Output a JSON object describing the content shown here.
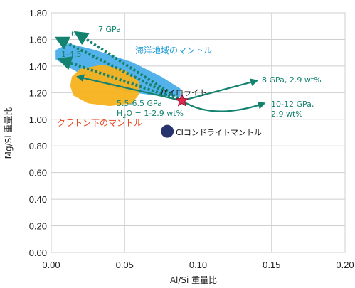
{
  "chart_data": {
    "type": "scatter",
    "xlabel": "Al/Si 重量比",
    "ylabel": "Mg/Si 重量比",
    "xlim": [
      0,
      0.2
    ],
    "ylim": [
      0,
      1.8
    ],
    "xticks": [
      "0.00",
      "0.05",
      "0.10",
      "0.15",
      "0.20"
    ],
    "yticks": [
      "0.00",
      "0.20",
      "0.40",
      "0.60",
      "0.80",
      "1.00",
      "1.20",
      "1.40",
      "1.60",
      "1.80"
    ],
    "grid": true,
    "colors": {
      "oceanic": "#4aaee8",
      "craton": "#f5b21c",
      "arrow": "#13826e",
      "pyrolite": "#e0284f",
      "chondrite": "#26336e",
      "craton_label": "#e8461e",
      "oceanic_label": "#1c9ad6",
      "arrow_label": "#13826e"
    },
    "regions": [
      {
        "name": "海洋地域のマントル",
        "color": "#4aaee8",
        "polygon": [
          [
            0.003,
            1.52
          ],
          [
            0.012,
            1.57
          ],
          [
            0.03,
            1.52
          ],
          [
            0.055,
            1.43
          ],
          [
            0.075,
            1.32
          ],
          [
            0.088,
            1.23
          ],
          [
            0.088,
            1.17
          ],
          [
            0.07,
            1.18
          ],
          [
            0.05,
            1.21
          ],
          [
            0.03,
            1.28
          ],
          [
            0.012,
            1.39
          ],
          [
            0.003,
            1.45
          ]
        ]
      },
      {
        "name": "クラトン下のマントル",
        "color": "#f5b21c",
        "polygon": [
          [
            0.014,
            1.32
          ],
          [
            0.02,
            1.38
          ],
          [
            0.035,
            1.41
          ],
          [
            0.05,
            1.37
          ],
          [
            0.06,
            1.28
          ],
          [
            0.06,
            1.19
          ],
          [
            0.055,
            1.12
          ],
          [
            0.04,
            1.1
          ],
          [
            0.025,
            1.12
          ],
          [
            0.015,
            1.18
          ],
          [
            0.013,
            1.25
          ]
        ]
      }
    ],
    "points": [
      {
        "label": "パイロライト",
        "x": 0.089,
        "y": 1.14,
        "marker": "star"
      },
      {
        "label": "CIコンドライトマントル",
        "x": 0.079,
        "y": 0.91,
        "marker": "circle"
      }
    ],
    "arrows": [
      {
        "label": "7 GPa",
        "style": "dotted",
        "from": [
          0.089,
          1.14
        ],
        "to": [
          0.017,
          1.65
        ]
      },
      {
        "label": "6",
        "style": "dotted",
        "from": [
          0.089,
          1.14
        ],
        "to": [
          0.004,
          1.61
        ]
      },
      {
        "label": "1-4.5",
        "style": "dotted",
        "from": [
          0.089,
          1.14
        ],
        "to": [
          0.006,
          1.45
        ]
      },
      {
        "label": "8 GPa, 2.9 wt%",
        "style": "solid",
        "from": [
          0.089,
          1.14
        ],
        "to": [
          0.14,
          1.29
        ]
      },
      {
        "label": "10-12 GPa, 2.9 wt%",
        "style": "solid-curve",
        "from": [
          0.089,
          1.14
        ],
        "to": [
          0.145,
          1.12
        ]
      },
      {
        "label": "5.5-6.5 GPa, H2O = 1-2.9 wt%",
        "style": "solid",
        "from": [
          0.089,
          1.14
        ],
        "to": [
          0.018,
          1.32
        ]
      }
    ],
    "annotations": {
      "oceanic": "海洋地域のマントル",
      "craton": "クラトン下のマントル",
      "pyrolite": "パイロライト",
      "chondrite": "CIコンドライトマントル",
      "p7": "7 GPa",
      "p6": "6",
      "p145": "1-4.5",
      "p8_line": "8 GPa, 2.9 wt%",
      "p1012_a": "10-12 GPa,",
      "p1012_b": "2.9 wt%",
      "p55_a": "5.5-6.5 GPa",
      "p55_b_pre": "H",
      "p55_b_sub": "2",
      "p55_b_post": "O = 1-2.9 wt%"
    }
  }
}
